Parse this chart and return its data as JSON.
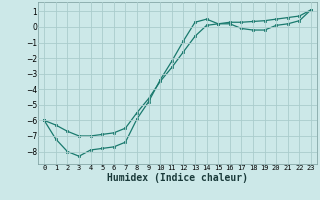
{
  "title": "",
  "xlabel": "Humidex (Indice chaleur)",
  "background_color": "#cce8e8",
  "grid_color": "#aacccc",
  "line_color": "#1a7a6e",
  "xlim": [
    -0.5,
    23.5
  ],
  "ylim": [
    -8.8,
    1.6
  ],
  "yticks": [
    1,
    0,
    -1,
    -2,
    -3,
    -4,
    -5,
    -6,
    -7,
    -8
  ],
  "xticks": [
    0,
    1,
    2,
    3,
    4,
    5,
    6,
    7,
    8,
    9,
    10,
    11,
    12,
    13,
    14,
    15,
    16,
    17,
    18,
    19,
    20,
    21,
    22,
    23
  ],
  "line1_x": [
    0,
    1,
    2,
    3,
    4,
    5,
    6,
    7,
    8,
    9,
    10,
    11,
    12,
    13,
    14,
    15,
    16,
    17,
    18,
    19,
    20,
    21,
    22,
    23
  ],
  "line1_y": [
    -6.0,
    -7.2,
    -8.0,
    -8.3,
    -7.9,
    -7.8,
    -7.7,
    -7.4,
    -5.9,
    -4.8,
    -3.4,
    -2.2,
    -0.9,
    0.3,
    0.5,
    0.2,
    0.2,
    -0.1,
    -0.2,
    -0.2,
    0.1,
    0.2,
    0.4,
    1.1
  ],
  "line2_x": [
    0,
    1,
    2,
    3,
    4,
    5,
    6,
    7,
    8,
    9,
    10,
    11,
    12,
    13,
    14,
    15,
    16,
    17,
    18,
    19,
    20,
    21,
    22,
    23
  ],
  "line2_y": [
    -6.0,
    -6.3,
    -6.7,
    -7.0,
    -7.0,
    -6.9,
    -6.8,
    -6.5,
    -5.5,
    -4.6,
    -3.5,
    -2.6,
    -1.6,
    -0.6,
    0.1,
    0.2,
    0.3,
    0.3,
    0.35,
    0.4,
    0.5,
    0.6,
    0.7,
    1.1
  ],
  "xlabel_fontsize": 7,
  "tick_fontsize": 5.5,
  "label_color": "#1a3a3a"
}
